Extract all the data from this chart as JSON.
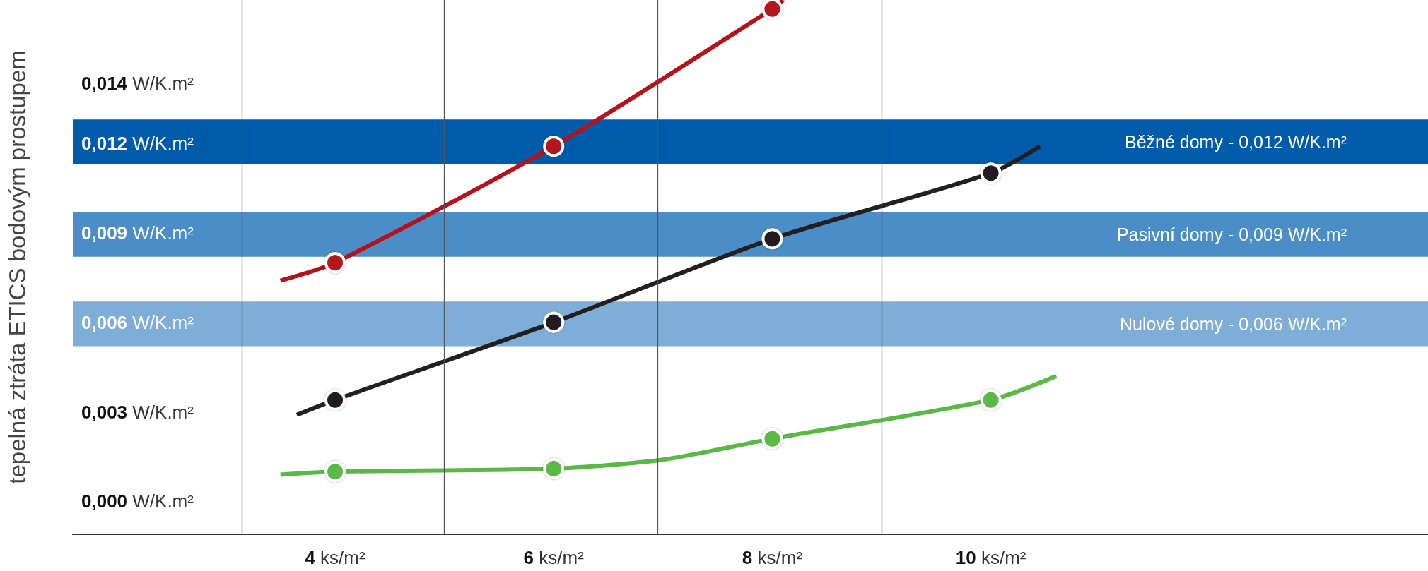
{
  "chart_data": {
    "type": "line",
    "ylabel": "tepelná ztráta ETICS bodovým prostupem",
    "xlim": [
      1.6,
      14
    ],
    "xticks": [
      {
        "value": 4,
        "label": "4 ks/m²"
      },
      {
        "value": 6,
        "label": "6 ks/m²"
      },
      {
        "value": 8,
        "label": "8 ks/m²"
      },
      {
        "value": 10,
        "label": "10 ks/m²"
      }
    ],
    "ylim": [
      -0.0011,
      0.0168
    ],
    "yticks": [
      {
        "value": 0,
        "label": "0,000 W/K.m²"
      },
      {
        "value": 0.003,
        "label": "0,003 W/K.m²"
      },
      {
        "value": 0.006,
        "label": "0,006 W/K.m²"
      },
      {
        "value": 0.009,
        "label": "0,009 W/K.m²"
      },
      {
        "value": 0.012,
        "label": "0,012 W/K.m²"
      },
      {
        "value": 0.014,
        "label": "0,014 W/K.m²"
      }
    ],
    "series": [
      {
        "color": "#b5121b",
        "x": [
          3.5,
          4,
          6,
          8,
          8.1
        ],
        "values": [
          0.0074,
          0.008,
          0.0119,
          0.0165,
          0.0168
        ]
      },
      {
        "color": "#231f20",
        "x": [
          3.65,
          4,
          6,
          8,
          10,
          10.45
        ],
        "values": [
          0.0029,
          0.0034,
          0.006,
          0.0088,
          0.011,
          0.0119
        ]
      },
      {
        "color": "#5ab946",
        "x": [
          3.5,
          4,
          6,
          7,
          8,
          10,
          10.6
        ],
        "values": [
          0.0009,
          0.001,
          0.0011,
          0.0014,
          0.0021,
          0.0034,
          0.0042
        ]
      }
    ],
    "bands": [
      {
        "axis": "y",
        "from": 0.0113,
        "to": 0.0128,
        "label": "Běžné domy - 0,012 W/K.m²",
        "color": "#005bab"
      },
      {
        "axis": "y",
        "from": 0.0082,
        "to": 0.0097,
        "label": "Pasivní domy - 0,009 W/K.m²",
        "color": "#4b8dc6"
      },
      {
        "axis": "y",
        "from": 0.0052,
        "to": 0.0067,
        "label": "Nulové domy - 0,006 W/K.m²",
        "color": "#7eaed8"
      }
    ],
    "ref_lines": [
      {
        "axis": "x",
        "value": 3.15,
        "label": null,
        "color": "#555555"
      },
      {
        "axis": "x",
        "value": 5,
        "label": null,
        "color": "#555555"
      },
      {
        "axis": "x",
        "value": 6.95,
        "label": null,
        "color": "#555555"
      },
      {
        "axis": "x",
        "value": 9,
        "label": null,
        "color": "#555555"
      }
    ],
    "marker": "circle",
    "grid": false
  }
}
